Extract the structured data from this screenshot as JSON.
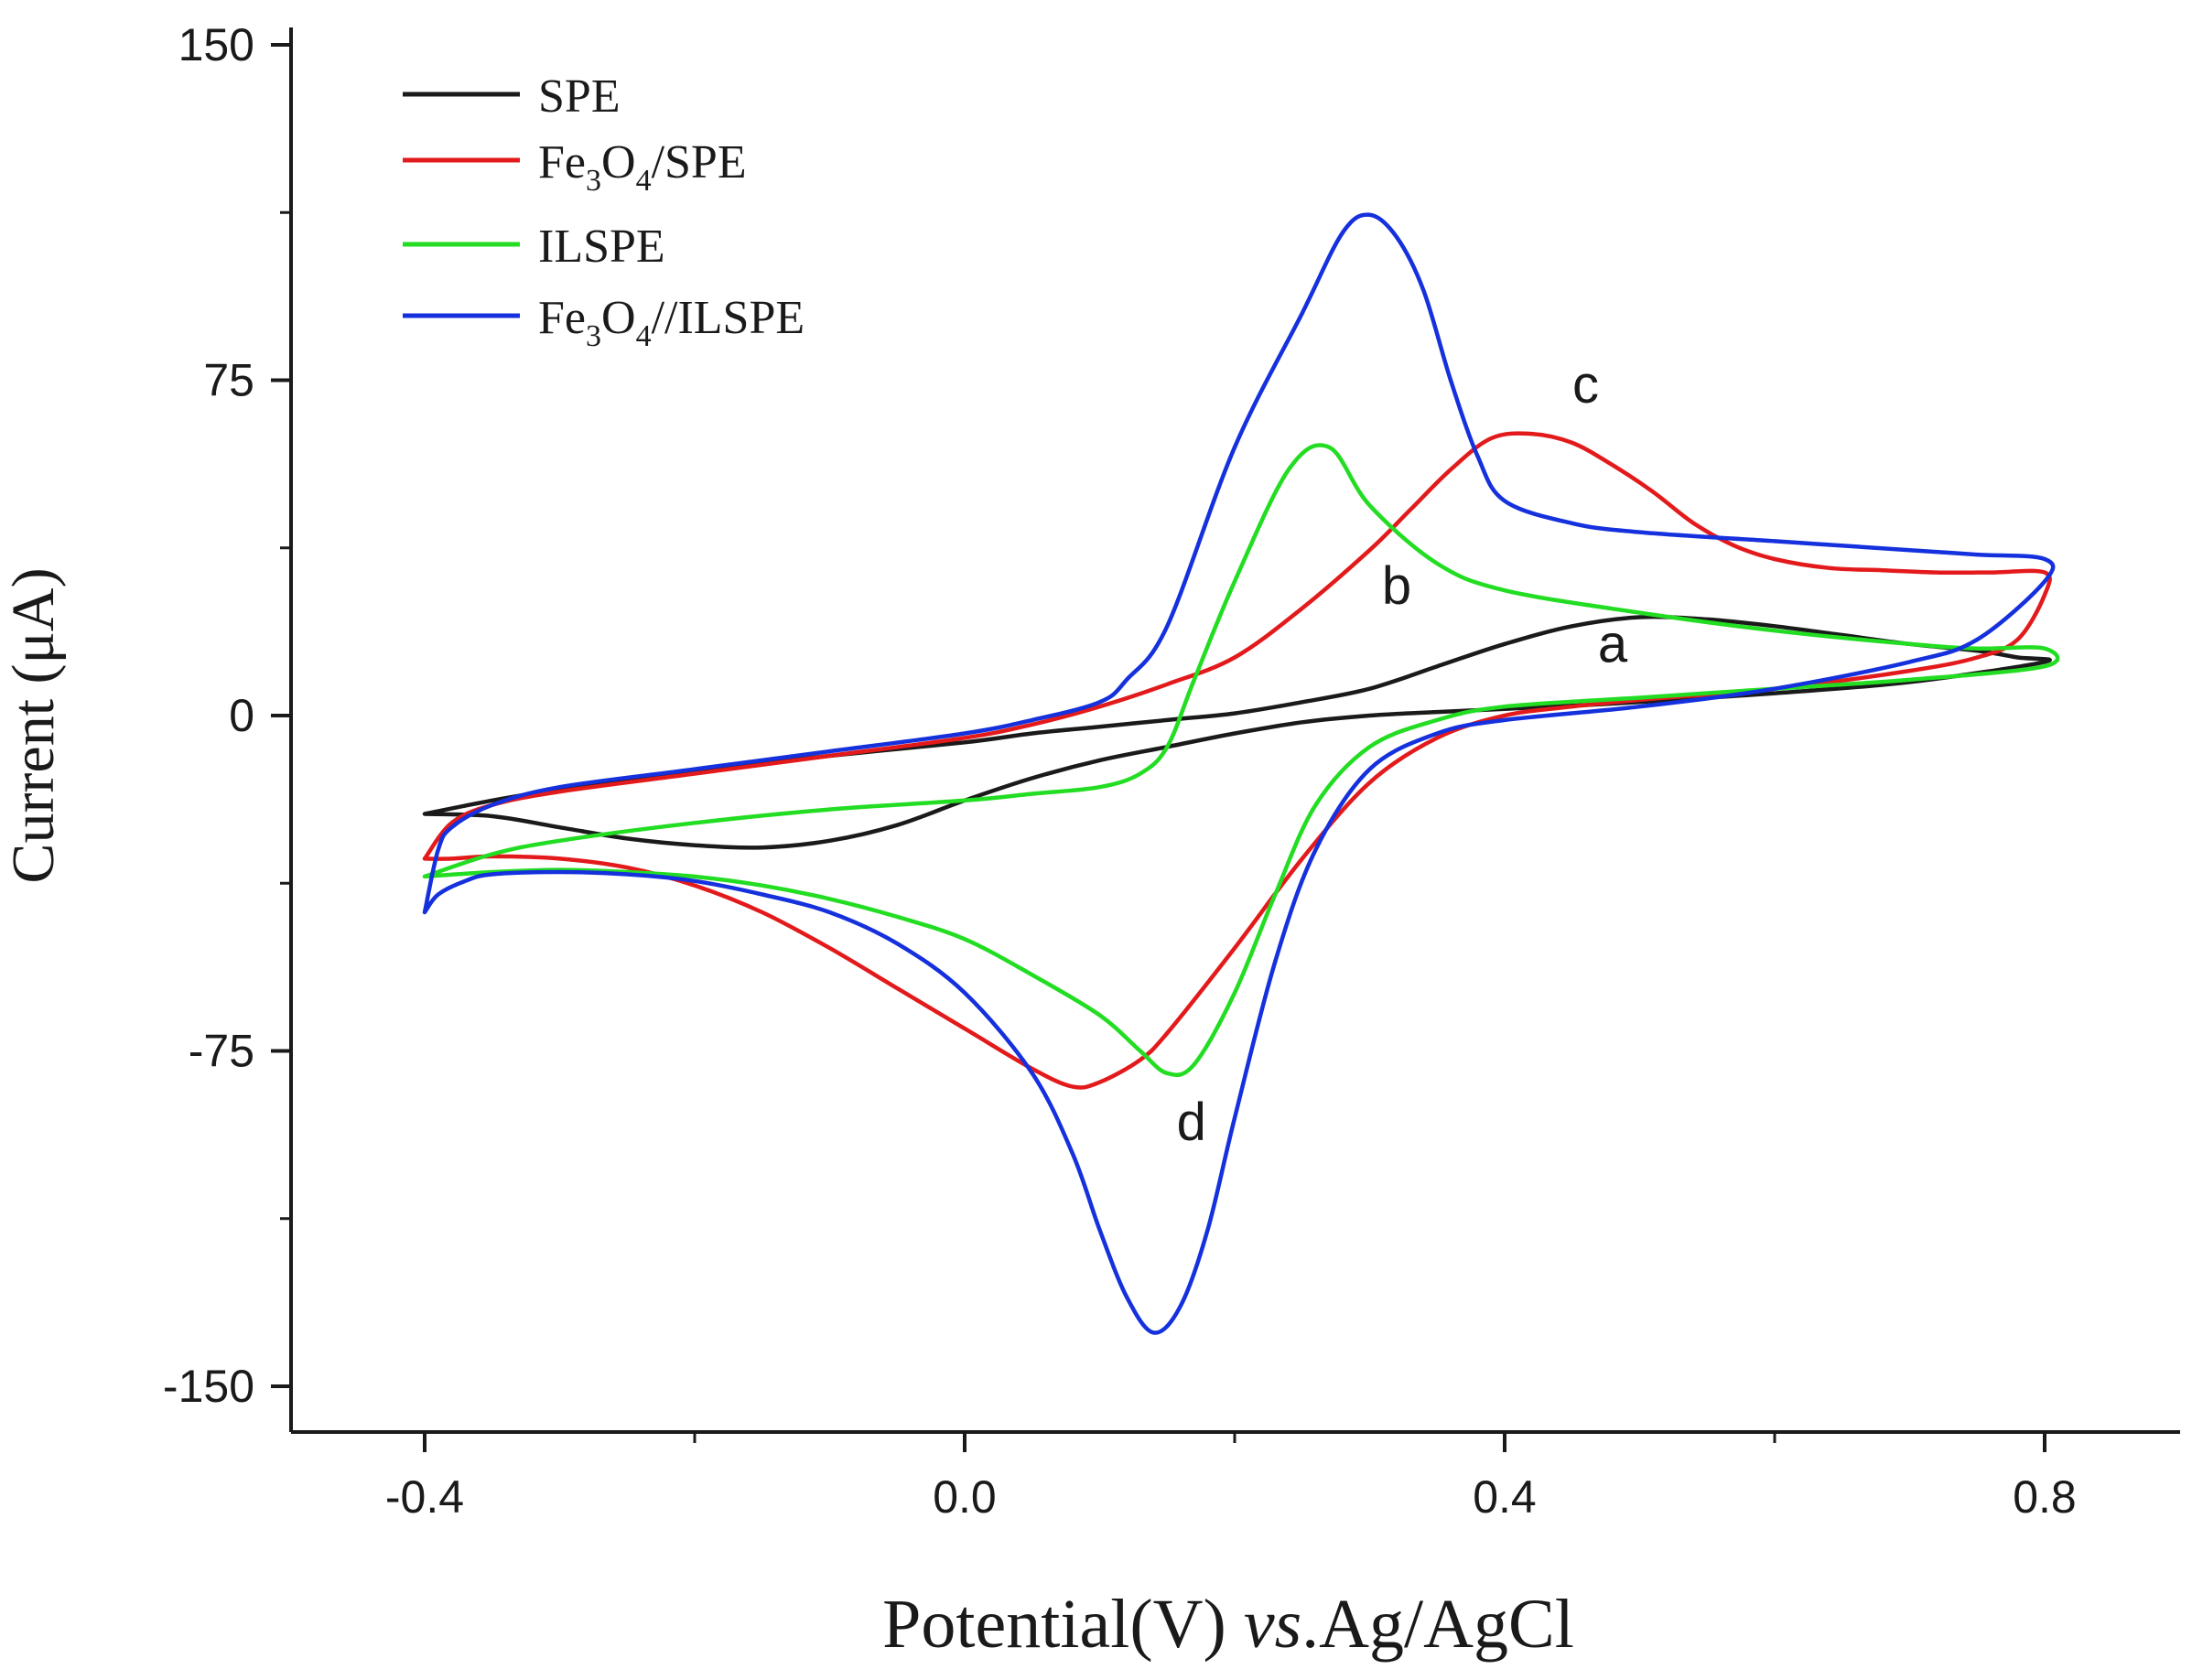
{
  "chart_data": {
    "type": "line",
    "title": "",
    "xlabel": {
      "main": "Potential(V) ",
      "italic": "vs",
      "tail": ".Ag/AgCl"
    },
    "ylabel": "Current (μA)",
    "xlim": [
      -0.5,
      0.9
    ],
    "ylim": [
      -160,
      150
    ],
    "x_ticks": [
      -0.4,
      0.0,
      0.4,
      0.8
    ],
    "x_tick_labels": [
      "-0.4",
      "0.0",
      "0.4",
      "0.8"
    ],
    "x_minor_ticks": [
      -0.2,
      0.2,
      0.6
    ],
    "y_ticks": [
      150,
      75,
      0,
      -75,
      -150
    ],
    "y_tick_labels": [
      "150",
      "75",
      "0",
      "-75",
      "-150"
    ],
    "y_minor_ticks": [
      112.5,
      37.5,
      -37.5,
      -112.5
    ],
    "grid": false,
    "legend_position": "top-left",
    "legend": [
      {
        "key": "spe",
        "parts": [
          {
            "t": "SPE"
          }
        ]
      },
      {
        "key": "fe3o4_spe",
        "parts": [
          {
            "t": "Fe"
          },
          {
            "t": "3",
            "sub": true
          },
          {
            "t": "O"
          },
          {
            "t": "4",
            "sub": true
          },
          {
            "t": "/SPE"
          }
        ]
      },
      {
        "key": "ilspe",
        "parts": [
          {
            "t": "ILSPE"
          }
        ]
      },
      {
        "key": "fe3o4_ilspe",
        "parts": [
          {
            "t": "Fe"
          },
          {
            "t": "3",
            "sub": true
          },
          {
            "t": "O"
          },
          {
            "t": "4",
            "sub": true
          },
          {
            "t": "//ILSPE"
          }
        ]
      }
    ],
    "annotations": [
      {
        "text": "a",
        "x": 0.48,
        "y": 12
      },
      {
        "text": "b",
        "x": 0.32,
        "y": 25
      },
      {
        "text": "c",
        "x": 0.46,
        "y": 70
      },
      {
        "text": "d",
        "x": 0.168,
        "y": -95
      }
    ],
    "series": [
      {
        "key": "spe",
        "name": "SPE",
        "color": "#1a1a1a",
        "points": [
          [
            -0.4,
            -22
          ],
          [
            -0.35,
            -22.5
          ],
          [
            -0.3,
            -25
          ],
          [
            -0.25,
            -27.5
          ],
          [
            -0.2,
            -29
          ],
          [
            -0.15,
            -29.5
          ],
          [
            -0.1,
            -28
          ],
          [
            -0.05,
            -24.5
          ],
          [
            0.0,
            -19
          ],
          [
            0.05,
            -14
          ],
          [
            0.1,
            -10
          ],
          [
            0.15,
            -7
          ],
          [
            0.2,
            -4
          ],
          [
            0.25,
            -1.5
          ],
          [
            0.3,
            0
          ],
          [
            0.35,
            0.8
          ],
          [
            0.4,
            1.5
          ],
          [
            0.5,
            3
          ],
          [
            0.6,
            5
          ],
          [
            0.7,
            7.5
          ],
          [
            0.8,
            12
          ],
          [
            0.78,
            13
          ],
          [
            0.75,
            14.5
          ],
          [
            0.7,
            16
          ],
          [
            0.65,
            18
          ],
          [
            0.6,
            20
          ],
          [
            0.55,
            21.5
          ],
          [
            0.5,
            22
          ],
          [
            0.45,
            20
          ],
          [
            0.4,
            16
          ],
          [
            0.35,
            11
          ],
          [
            0.3,
            6
          ],
          [
            0.25,
            3
          ],
          [
            0.2,
            0.5
          ],
          [
            0.15,
            -1
          ],
          [
            0.1,
            -2.5
          ],
          [
            0.05,
            -4
          ],
          [
            0.0,
            -6
          ],
          [
            -0.1,
            -9
          ],
          [
            -0.2,
            -12.5
          ],
          [
            -0.3,
            -16.5
          ],
          [
            -0.35,
            -19
          ],
          [
            -0.4,
            -22
          ]
        ]
      },
      {
        "key": "fe3o4_spe",
        "name": "Fe3O4/SPE",
        "color": "#e31a1c",
        "points": [
          [
            -0.4,
            -32
          ],
          [
            -0.38,
            -32
          ],
          [
            -0.35,
            -31.5
          ],
          [
            -0.3,
            -32
          ],
          [
            -0.25,
            -34
          ],
          [
            -0.2,
            -38
          ],
          [
            -0.15,
            -44
          ],
          [
            -0.1,
            -52
          ],
          [
            -0.05,
            -61
          ],
          [
            0.0,
            -70
          ],
          [
            0.05,
            -79
          ],
          [
            0.08,
            -83
          ],
          [
            0.1,
            -82
          ],
          [
            0.13,
            -77
          ],
          [
            0.15,
            -71
          ],
          [
            0.2,
            -52
          ],
          [
            0.25,
            -32
          ],
          [
            0.3,
            -15
          ],
          [
            0.35,
            -5
          ],
          [
            0.4,
            0
          ],
          [
            0.45,
            2
          ],
          [
            0.5,
            3.5
          ],
          [
            0.6,
            6
          ],
          [
            0.7,
            10
          ],
          [
            0.75,
            13
          ],
          [
            0.78,
            17
          ],
          [
            0.8,
            27
          ],
          [
            0.8,
            32
          ],
          [
            0.76,
            32
          ],
          [
            0.72,
            32
          ],
          [
            0.68,
            32.5
          ],
          [
            0.64,
            33
          ],
          [
            0.6,
            35
          ],
          [
            0.57,
            38
          ],
          [
            0.54,
            43
          ],
          [
            0.51,
            50
          ],
          [
            0.48,
            56
          ],
          [
            0.45,
            61
          ],
          [
            0.42,
            63
          ],
          [
            0.39,
            62
          ],
          [
            0.36,
            55
          ],
          [
            0.33,
            46
          ],
          [
            0.3,
            37
          ],
          [
            0.25,
            24
          ],
          [
            0.2,
            13
          ],
          [
            0.15,
            7
          ],
          [
            0.1,
            2
          ],
          [
            0.05,
            -2
          ],
          [
            0.0,
            -5
          ],
          [
            -0.1,
            -9
          ],
          [
            -0.2,
            -13
          ],
          [
            -0.3,
            -17
          ],
          [
            -0.35,
            -20
          ],
          [
            -0.38,
            -24
          ],
          [
            -0.4,
            -32
          ]
        ]
      },
      {
        "key": "ilspe",
        "name": "ILSPE",
        "color": "#22dd22",
        "points": [
          [
            -0.4,
            -36
          ],
          [
            -0.35,
            -35
          ],
          [
            -0.3,
            -34.5
          ],
          [
            -0.25,
            -35
          ],
          [
            -0.2,
            -36
          ],
          [
            -0.15,
            -38
          ],
          [
            -0.1,
            -41
          ],
          [
            -0.05,
            -45
          ],
          [
            0.0,
            -50
          ],
          [
            0.05,
            -58
          ],
          [
            0.1,
            -67
          ],
          [
            0.13,
            -75
          ],
          [
            0.15,
            -80
          ],
          [
            0.17,
            -78
          ],
          [
            0.2,
            -62
          ],
          [
            0.23,
            -40
          ],
          [
            0.26,
            -20
          ],
          [
            0.3,
            -7
          ],
          [
            0.35,
            -1
          ],
          [
            0.4,
            2
          ],
          [
            0.5,
            4
          ],
          [
            0.6,
            6
          ],
          [
            0.7,
            8
          ],
          [
            0.8,
            11
          ],
          [
            0.8,
            15
          ],
          [
            0.75,
            15
          ],
          [
            0.7,
            16
          ],
          [
            0.6,
            19
          ],
          [
            0.5,
            23
          ],
          [
            0.4,
            28
          ],
          [
            0.35,
            34
          ],
          [
            0.3,
            47
          ],
          [
            0.27,
            60
          ],
          [
            0.24,
            55
          ],
          [
            0.2,
            30
          ],
          [
            0.17,
            8
          ],
          [
            0.15,
            -7
          ],
          [
            0.13,
            -13
          ],
          [
            0.1,
            -16
          ],
          [
            0.05,
            -17.5
          ],
          [
            0.0,
            -19
          ],
          [
            -0.1,
            -21
          ],
          [
            -0.2,
            -24
          ],
          [
            -0.3,
            -28
          ],
          [
            -0.35,
            -31
          ],
          [
            -0.4,
            -36
          ]
        ]
      },
      {
        "key": "fe3o4_ilspe",
        "name": "Fe3O4//ILSPE",
        "color": "#1530dd",
        "points": [
          [
            -0.4,
            -44
          ],
          [
            -0.39,
            -40
          ],
          [
            -0.37,
            -37
          ],
          [
            -0.35,
            -35.5
          ],
          [
            -0.3,
            -35
          ],
          [
            -0.25,
            -35.5
          ],
          [
            -0.2,
            -37
          ],
          [
            -0.15,
            -40
          ],
          [
            -0.1,
            -44
          ],
          [
            -0.05,
            -51
          ],
          [
            0.0,
            -62
          ],
          [
            0.05,
            -80
          ],
          [
            0.08,
            -98
          ],
          [
            0.1,
            -115
          ],
          [
            0.12,
            -130
          ],
          [
            0.14,
            -138
          ],
          [
            0.16,
            -132
          ],
          [
            0.18,
            -115
          ],
          [
            0.2,
            -90
          ],
          [
            0.23,
            -55
          ],
          [
            0.26,
            -30
          ],
          [
            0.3,
            -12
          ],
          [
            0.35,
            -4
          ],
          [
            0.4,
            -1
          ],
          [
            0.5,
            2
          ],
          [
            0.6,
            6
          ],
          [
            0.7,
            12
          ],
          [
            0.75,
            17
          ],
          [
            0.8,
            30
          ],
          [
            0.8,
            35
          ],
          [
            0.75,
            36
          ],
          [
            0.7,
            37
          ],
          [
            0.6,
            39
          ],
          [
            0.5,
            41
          ],
          [
            0.45,
            43
          ],
          [
            0.4,
            48
          ],
          [
            0.38,
            58
          ],
          [
            0.36,
            75
          ],
          [
            0.34,
            95
          ],
          [
            0.32,
            107
          ],
          [
            0.3,
            112
          ],
          [
            0.28,
            108
          ],
          [
            0.25,
            90
          ],
          [
            0.2,
            60
          ],
          [
            0.15,
            20
          ],
          [
            0.12,
            8
          ],
          [
            0.1,
            3
          ],
          [
            0.05,
            -1
          ],
          [
            0.0,
            -4
          ],
          [
            -0.1,
            -8
          ],
          [
            -0.2,
            -12
          ],
          [
            -0.3,
            -16
          ],
          [
            -0.35,
            -20
          ],
          [
            -0.38,
            -25
          ],
          [
            -0.39,
            -30
          ],
          [
            -0.4,
            -44
          ]
        ]
      }
    ]
  }
}
